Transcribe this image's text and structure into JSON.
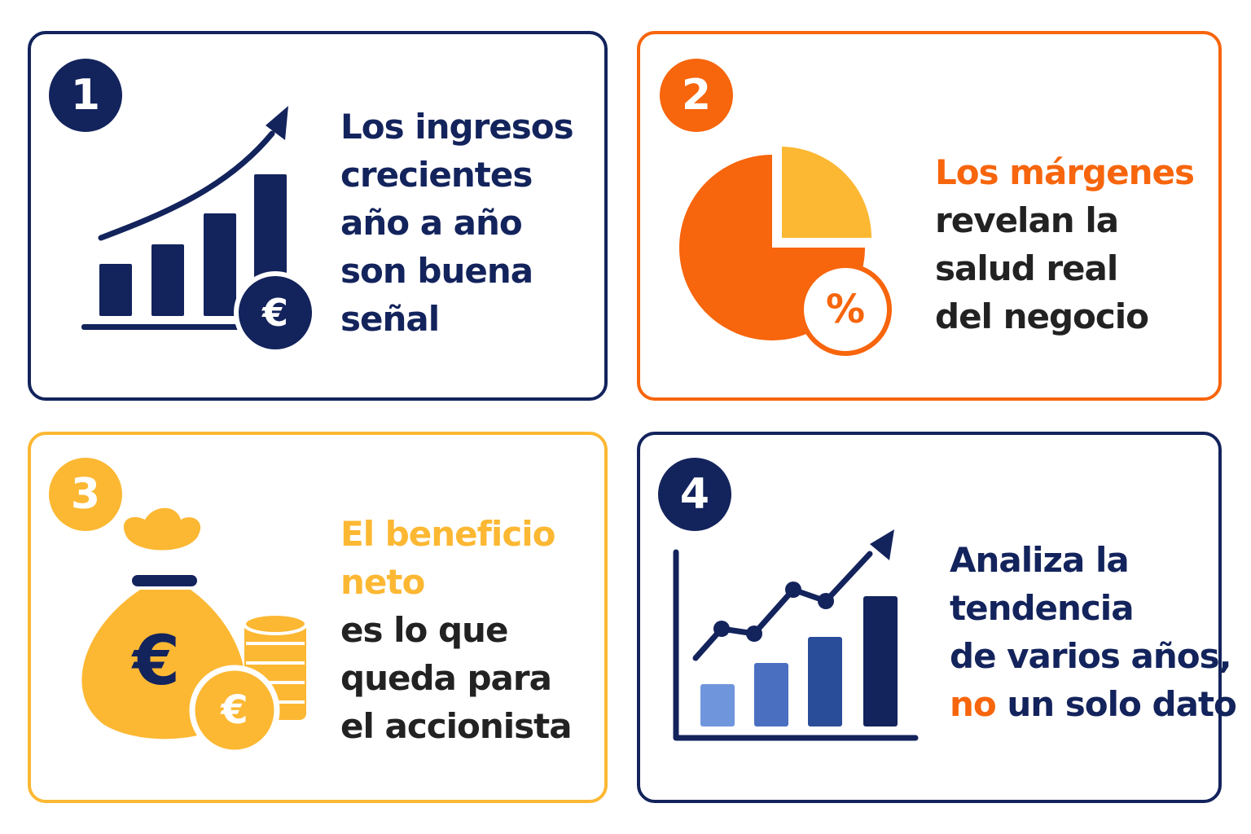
{
  "colors": {
    "navy": "#13235c",
    "orange": "#f7650c",
    "yellow": "#fcb833",
    "dark_text": "#222222",
    "light_blue": "#6f96dc",
    "mid_blue": "#4a6fc0",
    "deep_blue": "#2a4d9a"
  },
  "cards": [
    {
      "number": "1",
      "border_color": "#13235c",
      "badge_color": "#13235c",
      "icon": "rising-bar-chart-euro-icon",
      "lines": [
        "Los ingresos",
        "crecientes",
        "año a año",
        "son buena",
        "señal"
      ]
    },
    {
      "number": "2",
      "border_color": "#f7650c",
      "badge_color": "#f7650c",
      "icon": "pie-chart-percent-icon",
      "highlight": "Los márgenes",
      "lines": [
        "revelan la",
        "salud real",
        "del negocio"
      ],
      "coin_symbol": "%"
    },
    {
      "number": "3",
      "border_color": "#fcb833",
      "badge_color": "#fcb833",
      "icon": "money-bag-coins-icon",
      "highlight_lines": [
        "El beneficio",
        "neto"
      ],
      "lines": [
        "es lo que",
        "queda para",
        "el accionista"
      ]
    },
    {
      "number": "4",
      "border_color": "#13235c",
      "badge_color": "#13235c",
      "icon": "trend-bar-line-chart-icon",
      "lines": [
        "Analiza la",
        "tendencia",
        "de varios años,"
      ],
      "last_line_highlight": "no",
      "last_line_rest": " un solo dato"
    }
  ],
  "euro_symbol": "€"
}
